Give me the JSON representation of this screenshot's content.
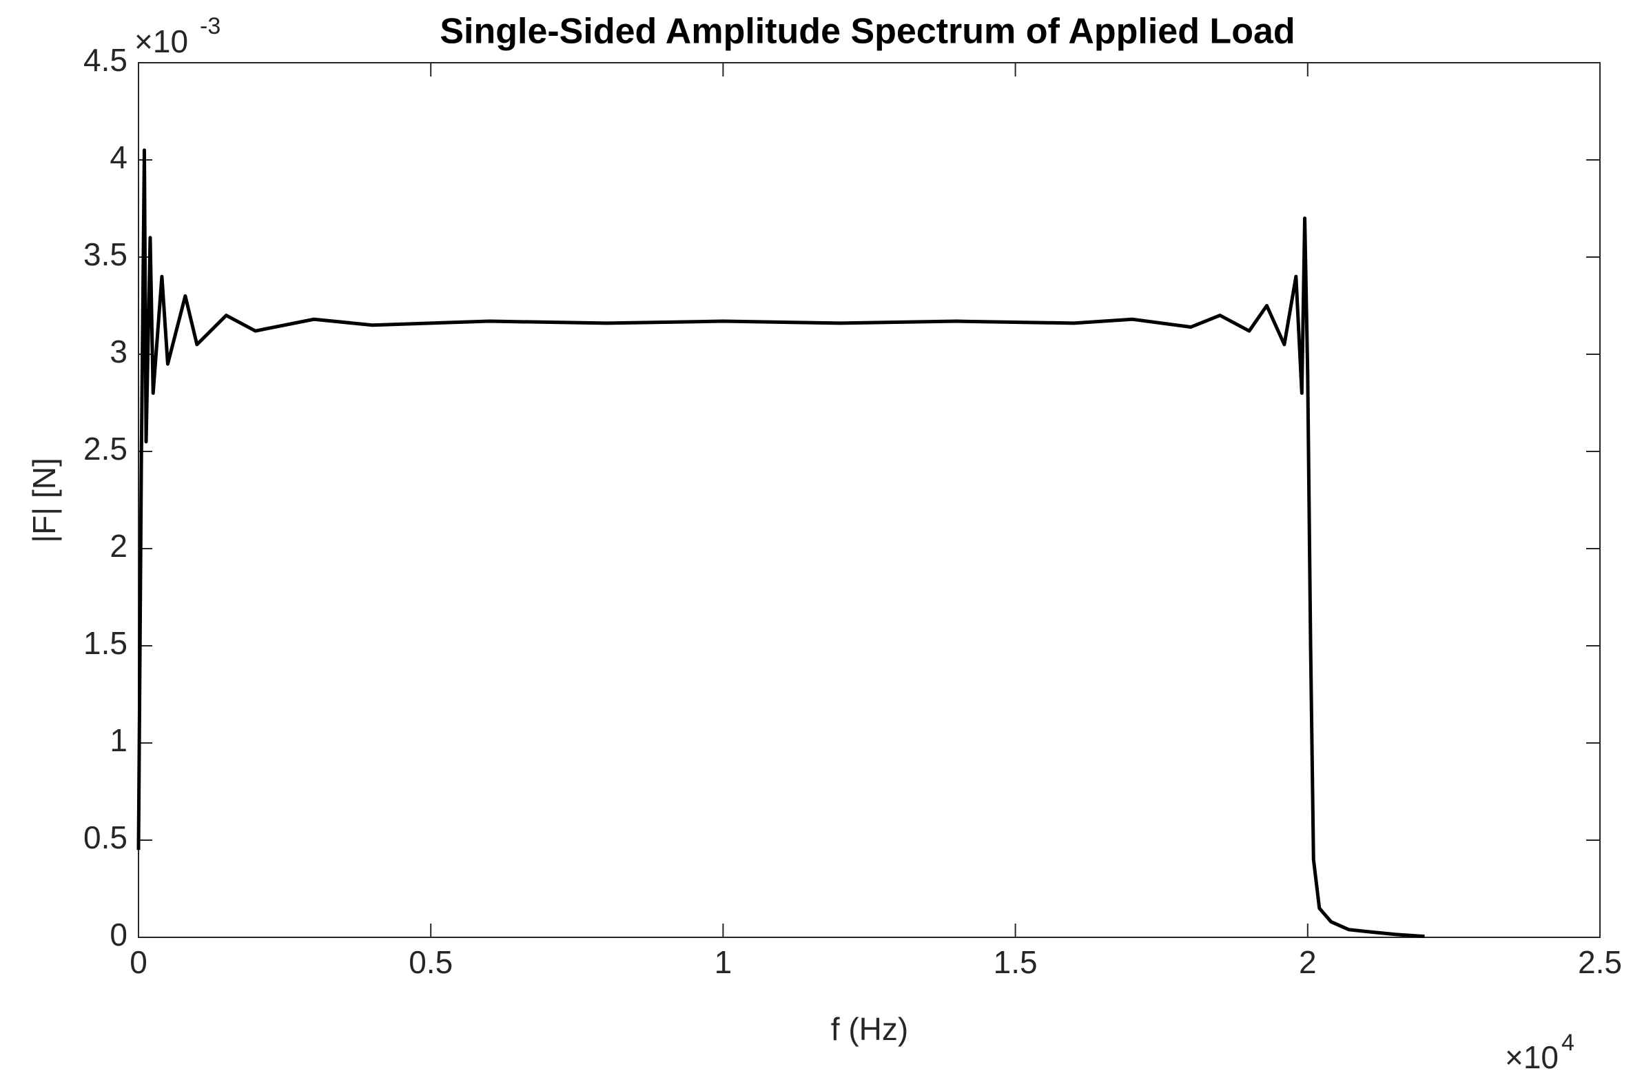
{
  "chart_data": {
    "type": "line",
    "title": "Single-Sided Amplitude Spectrum of Applied Load",
    "x_label": "f (Hz)",
    "y_label": "|F| [N]",
    "x_multiplier": "×10",
    "x_exponent": "4",
    "y_multiplier": "×10",
    "y_exponent": "-3",
    "x": [
      0,
      0.005,
      0.01,
      0.013,
      0.02,
      0.025,
      0.04,
      0.05,
      0.08,
      0.1,
      0.15,
      0.2,
      0.3,
      0.4,
      0.6,
      0.8,
      1.0,
      1.2,
      1.4,
      1.6,
      1.7,
      1.8,
      1.85,
      1.9,
      1.93,
      1.96,
      1.98,
      1.99,
      1.995,
      2.0,
      2.005,
      2.01,
      2.02,
      2.04,
      2.07,
      2.1,
      2.15,
      2.2
    ],
    "values": [
      0.45,
      2.5,
      4.05,
      2.55,
      3.6,
      2.8,
      3.4,
      2.95,
      3.3,
      3.05,
      3.2,
      3.12,
      3.18,
      3.15,
      3.17,
      3.16,
      3.17,
      3.16,
      3.17,
      3.16,
      3.18,
      3.14,
      3.2,
      3.12,
      3.25,
      3.05,
      3.4,
      2.8,
      3.7,
      2.9,
      1.5,
      0.4,
      0.15,
      0.08,
      0.04,
      0.03,
      0.015,
      0.005
    ],
    "color": "#000000",
    "xlim": [
      0,
      2.5
    ],
    "xticks": [
      0,
      0.5,
      1,
      1.5,
      2,
      2.5
    ],
    "ylim": [
      0,
      4.5
    ],
    "yticks": [
      0,
      0.5,
      1,
      1.5,
      2,
      2.5,
      3,
      3.5,
      4,
      4.5
    ],
    "grid": false
  }
}
